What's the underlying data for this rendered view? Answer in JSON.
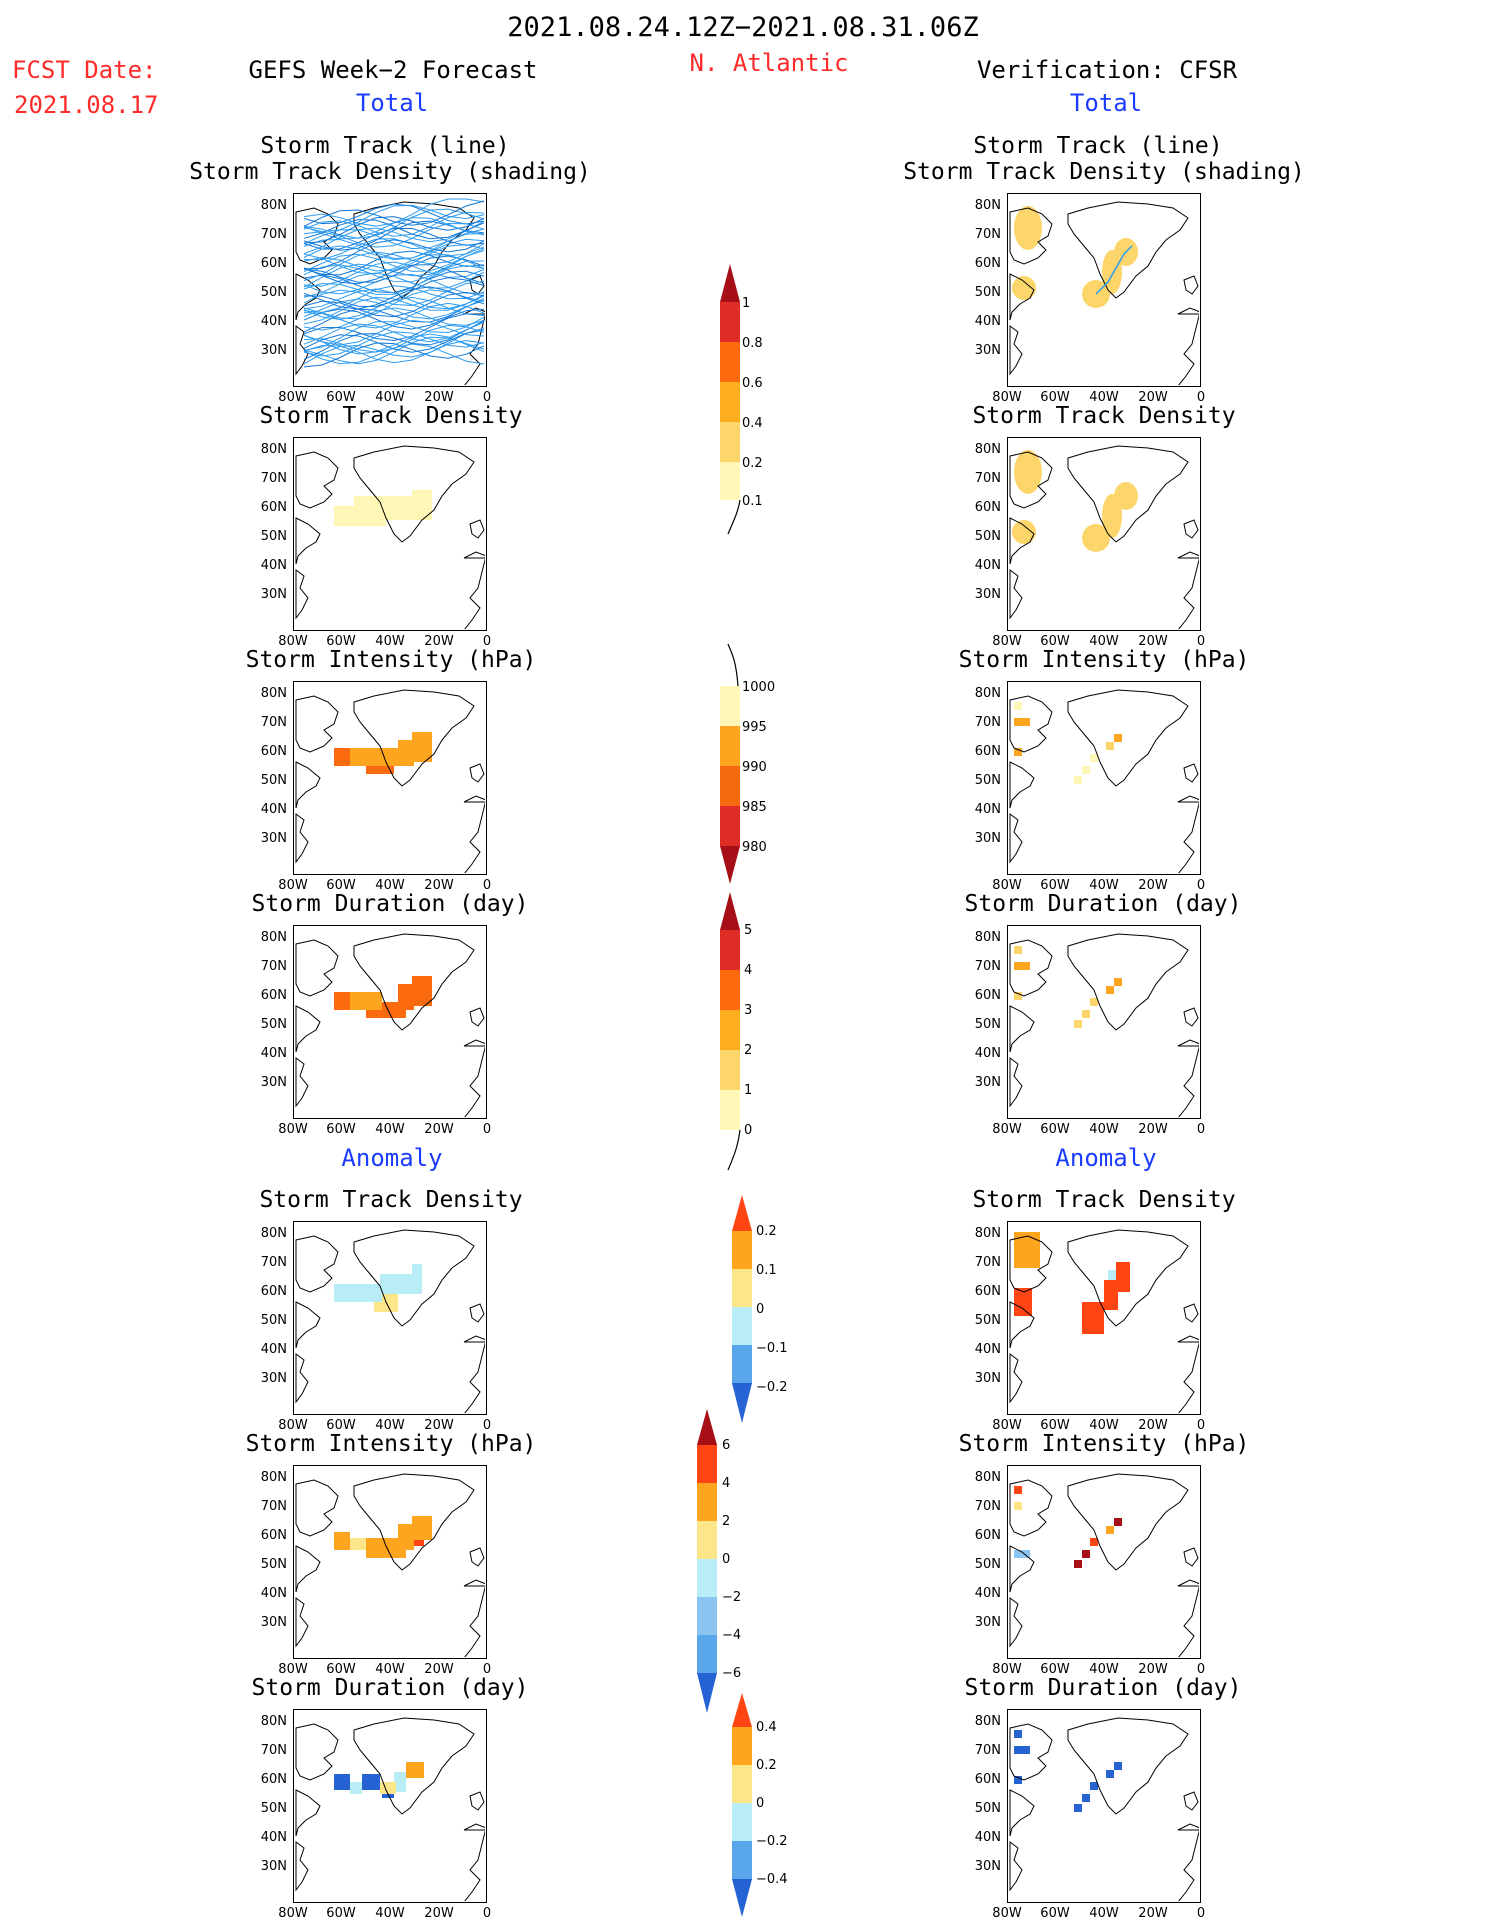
{
  "header": {
    "period": "2021.08.24.12Z−2021.08.31.06Z",
    "fcst_label": "FCST Date:",
    "fcst_date": "2021.08.17",
    "left_title": "GEFS Week−2 Forecast",
    "region": "N. Atlantic",
    "right_title": "Verification: CFSR",
    "total_left": "Total",
    "total_right": "Total",
    "anomaly_left": "Anomaly",
    "anomaly_right": "Anomaly"
  },
  "panel_titles": {
    "track_line": "Storm Track (line)",
    "track_density_shading": "Storm Track Density (shading)",
    "track_density": "Storm Track Density",
    "intensity": "Storm Intensity (hPa)",
    "duration": "Storm Duration (day)"
  },
  "axes": {
    "y_ticks": [
      "80N",
      "70N",
      "60N",
      "50N",
      "40N",
      "30N"
    ],
    "x_ticks": [
      "80W",
      "60W",
      "40W",
      "20W",
      "0"
    ]
  },
  "colorbars": {
    "density": [
      "1",
      "0.8",
      "0.6",
      "0.4",
      "0.2",
      "0.1"
    ],
    "intensity": [
      "1000",
      "995",
      "990",
      "985",
      "980"
    ],
    "duration": [
      "5",
      "4",
      "3",
      "2",
      "1",
      "0"
    ],
    "anom_density": [
      "0.2",
      "0.1",
      "0",
      "−0.1",
      "−0.2"
    ],
    "anom_intensity": [
      "6",
      "4",
      "2",
      "0",
      "−2",
      "−4",
      "−6"
    ],
    "anom_duration": [
      "0.4",
      "0.2",
      "0",
      "−0.2",
      "−0.4"
    ]
  }
}
